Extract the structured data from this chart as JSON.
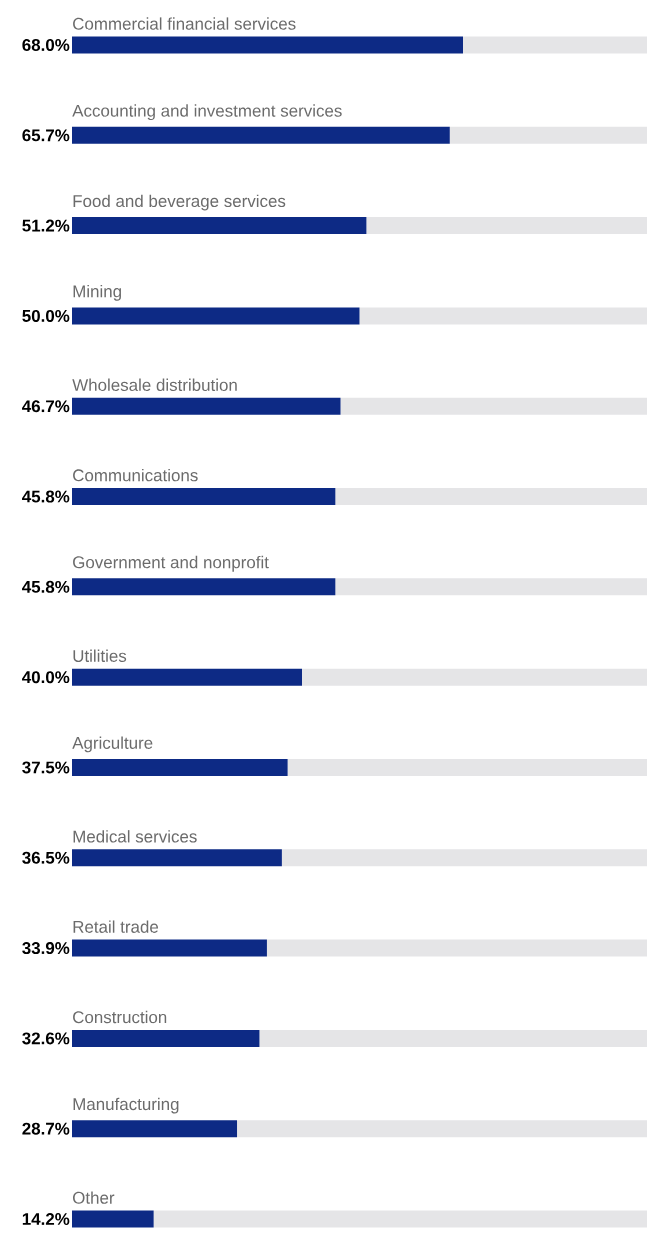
{
  "chart_data": {
    "type": "bar",
    "orientation": "horizontal",
    "stacked": true,
    "tick_labels": false,
    "xlim": [
      0,
      100
    ],
    "categories": [
      "Commercial financial services",
      "Accounting and investment services",
      "Food and beverage services",
      "Mining",
      "Wholesale distribution",
      "Communications",
      "Government and nonprofit",
      "Utilities",
      "Agriculture",
      "Medical services",
      "Retail trade",
      "Construction",
      "Manufacturing",
      "Other"
    ],
    "series": [
      {
        "color": "#0d2a85",
        "values": [
          68.0,
          65.7,
          51.2,
          50.0,
          46.7,
          45.8,
          45.8,
          40.0,
          37.5,
          36.5,
          33.9,
          32.6,
          28.7,
          14.2
        ],
        "value_labels": [
          "68.0%",
          "65.7%",
          "51.2%",
          "50.0%",
          "46.7%",
          "45.8%",
          "45.8%",
          "40.0%",
          "37.5%",
          "36.5%",
          "33.9%",
          "32.6%",
          "28.7%",
          "14.2%"
        ]
      },
      {
        "color": "#e5e5e7",
        "values": [
          32.0,
          34.3,
          48.8,
          50.0,
          53.3,
          54.2,
          54.2,
          60.0,
          62.5,
          63.5,
          66.1,
          67.4,
          71.3,
          85.8
        ]
      }
    ]
  }
}
